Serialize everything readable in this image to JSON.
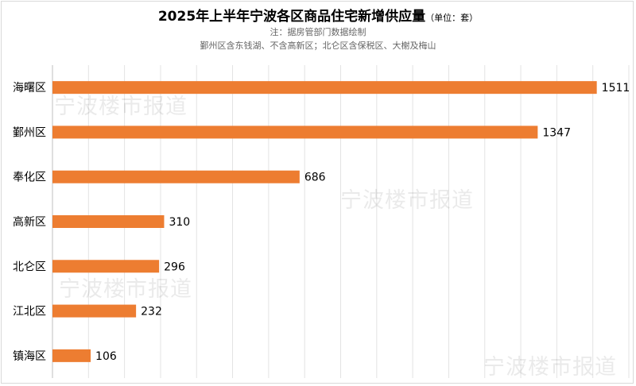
{
  "watermark": "宁波楼市报道",
  "chart_data": {
    "type": "bar",
    "orientation": "horizontal",
    "title": "2025年上半年宁波各区商品住宅新增供应量",
    "unit_label": "（单位：套）",
    "notes": [
      "注：据房管部门数据绘制",
      "鄞州区含东钱湖、不含高新区；北仑区含保税区、大榭及梅山"
    ],
    "categories": [
      "海曙区",
      "鄞州区",
      "奉化区",
      "高新区",
      "北仑区",
      "江北区",
      "镇海区"
    ],
    "values": [
      1511,
      1347,
      686,
      310,
      296,
      232,
      106
    ],
    "xlim": [
      0,
      1600
    ],
    "grid": true,
    "bar_color": "#ed7d31",
    "label_values": [
      "1511",
      "1347",
      "686",
      "310",
      "296",
      "232",
      "106"
    ]
  }
}
